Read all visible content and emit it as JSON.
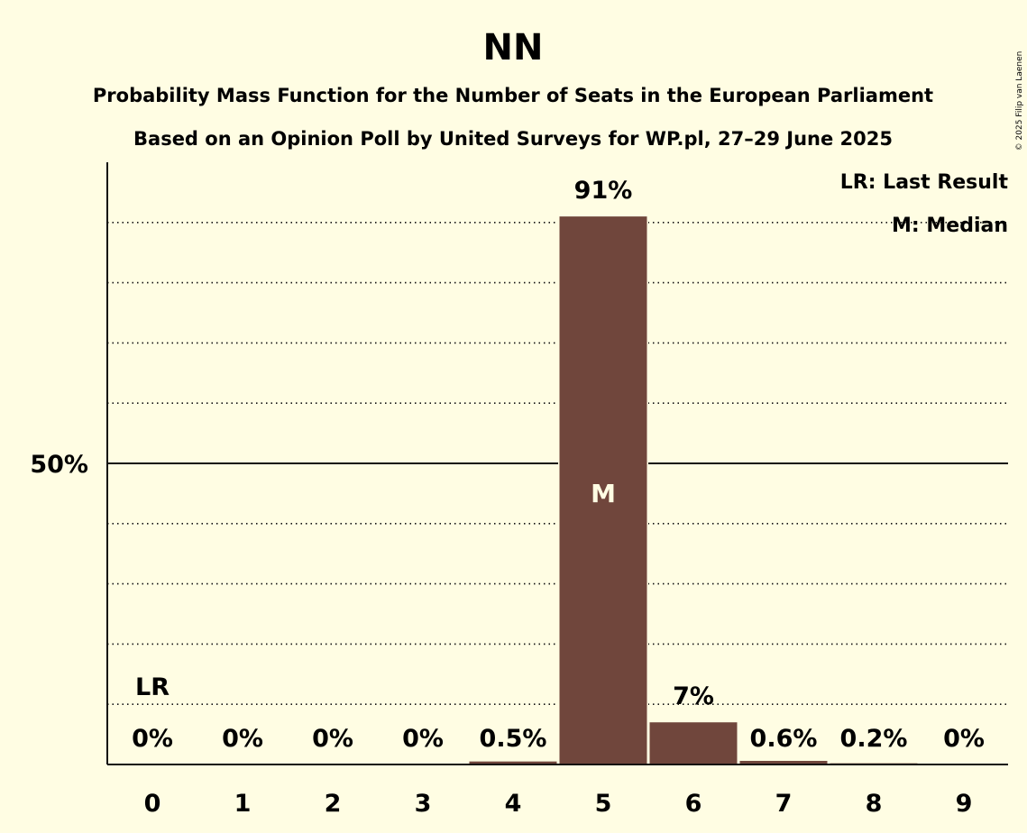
{
  "chart_data": {
    "type": "bar",
    "title": "NN",
    "subtitle_1": "Probability Mass Function for the Number of Seats in the European Parliament",
    "subtitle_2": "Based on an Opinion Poll by United Surveys for WP.pl, 27–29 June 2025",
    "categories": [
      "0",
      "1",
      "2",
      "3",
      "4",
      "5",
      "6",
      "7",
      "8",
      "9"
    ],
    "values": [
      0,
      0,
      0,
      0,
      0.5,
      91,
      7,
      0.6,
      0.2,
      0
    ],
    "value_labels": [
      "0%",
      "0%",
      "0%",
      "0%",
      "0.5%",
      "91%",
      "7%",
      "0.6%",
      "0.2%",
      "0%"
    ],
    "ylim": [
      0,
      100
    ],
    "y_tick_label": "50%",
    "y_tick_value": 50,
    "gridlines": [
      10,
      20,
      30,
      40,
      60,
      70,
      80,
      90
    ],
    "last_result_index": 0,
    "last_result_label": "LR",
    "median_index": 5,
    "median_label": "M",
    "bar_color": "#70463C",
    "legend": {
      "position": "top-right",
      "last_result": "LR: Last Result",
      "median": "M: Median"
    },
    "copyright": "© 2025 Filip van Laenen"
  }
}
